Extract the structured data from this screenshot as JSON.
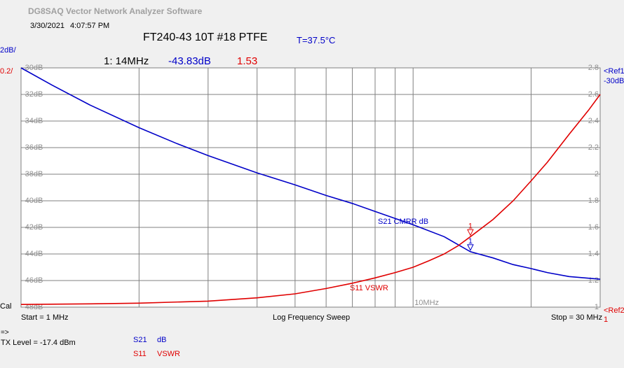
{
  "app_title": "DG8SAQ Vector Network Analyzer Software",
  "timestamp": {
    "date": "3/30/2021",
    "time": "4:07:57 PM"
  },
  "dut_title": "FT240-43 10T #18 PTFE",
  "temperature": "T=37.5°C",
  "scales": {
    "s21": "2dB/",
    "s11": "0.2/"
  },
  "marker": {
    "label": "1: 14MHz",
    "s21_value": "-43.83dB",
    "s11_value": "1.53",
    "number": "1"
  },
  "references": {
    "ref1_label": "<Ref1",
    "ref1_value": "-30dB",
    "ref2_label": "<Ref2",
    "ref2_value": "1"
  },
  "cal_label": "Cal",
  "start_label": "Start = 1 MHz",
  "sweep_label": "Log Frequency Sweep",
  "stop_label": "Stop = 30 MHz",
  "arrow_label": "=>",
  "tx_level": "TX Level = -17.4 dBm",
  "legend": {
    "s21_name": "S21",
    "s21_unit": "dB",
    "s11_name": "S11",
    "s11_unit": "VSWR"
  },
  "colors": {
    "s21": "#0000c8",
    "s11": "#e00000",
    "grid": "#808080",
    "plot_bg": "#ffffff"
  },
  "chart_data": {
    "type": "line",
    "x_scale": "log",
    "xlim_mhz": [
      1,
      30
    ],
    "grid": true,
    "left_axis": {
      "ticks": [
        "-30dB",
        "-32dB",
        "-34dB",
        "-36dB",
        "-38dB",
        "-40dB",
        "-42dB",
        "-44dB",
        "-46dB",
        "-48dB"
      ],
      "range": [
        -48,
        -30
      ]
    },
    "right_axis": {
      "ticks": [
        "2.8",
        "2.6",
        "2.4",
        "2.2",
        "2",
        "1.8",
        "1.6",
        "1.4",
        "1.2",
        "1"
      ],
      "range": [
        1,
        2.8
      ]
    },
    "x_tick_label": "10MHz",
    "marker_freq_mhz": 14,
    "series": [
      {
        "name": "S21 CMRR dB",
        "axis": "left",
        "x": [
          1,
          1.2,
          1.5,
          2,
          2.5,
          3,
          4,
          5,
          6,
          7,
          8,
          10,
          12,
          14,
          16,
          18,
          20,
          22,
          25,
          30
        ],
        "values": [
          -30.0,
          -31.3,
          -32.8,
          -34.5,
          -35.7,
          -36.6,
          -37.9,
          -38.8,
          -39.6,
          -40.2,
          -40.8,
          -41.8,
          -42.7,
          -43.83,
          -44.3,
          -44.8,
          -45.1,
          -45.4,
          -45.7,
          -45.9
        ]
      },
      {
        "name": "S11 VSWR",
        "axis": "right",
        "x": [
          1,
          1.5,
          2,
          3,
          4,
          5,
          6,
          7,
          8,
          9,
          10,
          11,
          12,
          13,
          14,
          16,
          18,
          20,
          22,
          25,
          28,
          30
        ],
        "values": [
          1.02,
          1.025,
          1.03,
          1.045,
          1.07,
          1.1,
          1.14,
          1.18,
          1.22,
          1.26,
          1.3,
          1.35,
          1.4,
          1.46,
          1.53,
          1.66,
          1.8,
          1.95,
          2.09,
          2.3,
          2.48,
          2.6
        ]
      }
    ]
  }
}
